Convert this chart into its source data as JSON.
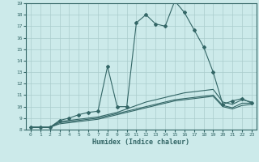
{
  "xlabel": "Humidex (Indice chaleur)",
  "ylabel": "",
  "xlim": [
    -0.5,
    23.5
  ],
  "ylim": [
    8,
    19
  ],
  "yticks": [
    8,
    9,
    10,
    11,
    12,
    13,
    14,
    15,
    16,
    17,
    18,
    19
  ],
  "xticks": [
    0,
    1,
    2,
    3,
    4,
    5,
    6,
    7,
    8,
    9,
    10,
    11,
    12,
    13,
    14,
    15,
    16,
    17,
    18,
    19,
    20,
    21,
    22,
    23
  ],
  "background_color": "#cceaea",
  "grid_color": "#aacccc",
  "line_color": "#336666",
  "lines": [
    {
      "x": [
        0,
        1,
        2,
        3,
        4,
        5,
        6,
        7,
        8,
        9,
        10,
        11,
        12,
        13,
        14,
        15,
        16,
        17,
        18,
        19,
        20,
        21,
        22,
        23
      ],
      "y": [
        8.2,
        8.2,
        8.2,
        8.8,
        9.0,
        9.3,
        9.5,
        9.6,
        13.5,
        10.0,
        10.0,
        17.3,
        18.0,
        17.2,
        17.0,
        19.2,
        18.2,
        16.7,
        15.2,
        13.0,
        10.2,
        10.5,
        10.7,
        10.3
      ],
      "marker": true
    },
    {
      "x": [
        0,
        1,
        2,
        3,
        4,
        5,
        6,
        7,
        8,
        9,
        10,
        11,
        12,
        13,
        14,
        15,
        16,
        17,
        18,
        19,
        20,
        21,
        22,
        23
      ],
      "y": [
        8.2,
        8.2,
        8.2,
        8.7,
        8.8,
        8.9,
        9.0,
        9.1,
        9.3,
        9.5,
        9.8,
        10.1,
        10.4,
        10.6,
        10.8,
        11.0,
        11.2,
        11.3,
        11.4,
        11.5,
        10.4,
        10.2,
        10.6,
        10.4
      ],
      "marker": false
    },
    {
      "x": [
        0,
        1,
        2,
        3,
        4,
        5,
        6,
        7,
        8,
        9,
        10,
        11,
        12,
        13,
        14,
        15,
        16,
        17,
        18,
        19,
        20,
        21,
        22,
        23
      ],
      "y": [
        8.2,
        8.2,
        8.2,
        8.6,
        8.7,
        8.8,
        8.9,
        9.0,
        9.2,
        9.4,
        9.6,
        9.8,
        10.0,
        10.2,
        10.4,
        10.6,
        10.7,
        10.8,
        10.9,
        11.0,
        10.1,
        9.9,
        10.3,
        10.3
      ],
      "marker": false
    },
    {
      "x": [
        0,
        1,
        2,
        3,
        4,
        5,
        6,
        7,
        8,
        9,
        10,
        11,
        12,
        13,
        14,
        15,
        16,
        17,
        18,
        19,
        20,
        21,
        22,
        23
      ],
      "y": [
        8.2,
        8.2,
        8.2,
        8.5,
        8.6,
        8.7,
        8.8,
        8.9,
        9.1,
        9.3,
        9.5,
        9.7,
        9.9,
        10.1,
        10.3,
        10.5,
        10.6,
        10.7,
        10.8,
        10.9,
        10.0,
        9.8,
        10.1,
        10.2
      ],
      "marker": false
    }
  ]
}
